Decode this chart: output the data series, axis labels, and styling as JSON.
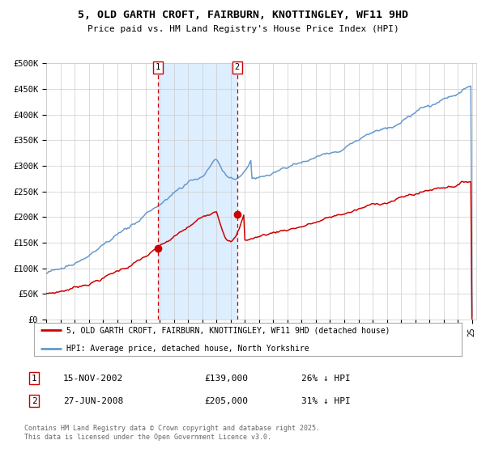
{
  "title": "5, OLD GARTH CROFT, FAIRBURN, KNOTTINGLEY, WF11 9HD",
  "subtitle": "Price paid vs. HM Land Registry's House Price Index (HPI)",
  "ylim": [
    0,
    500000
  ],
  "yticks": [
    0,
    50000,
    100000,
    150000,
    200000,
    250000,
    300000,
    350000,
    400000,
    450000,
    500000
  ],
  "ytick_labels": [
    "£0",
    "£50K",
    "£100K",
    "£150K",
    "£200K",
    "£250K",
    "£300K",
    "£350K",
    "£400K",
    "£450K",
    "£500K"
  ],
  "sale1_price": 139000,
  "sale1_label": "1",
  "sale1_date_str": "15-NOV-2002",
  "sale1_pct": "26% ↓ HPI",
  "sale2_price": 205000,
  "sale2_label": "2",
  "sale2_date_str": "27-JUN-2008",
  "sale2_pct": "31% ↓ HPI",
  "line1_color": "#cc0000",
  "line2_color": "#6699cc",
  "shading_color": "#ddeeff",
  "vline_color": "#cc0000",
  "background_color": "#ffffff",
  "grid_color": "#cccccc",
  "legend1_label": "5, OLD GARTH CROFT, FAIRBURN, KNOTTINGLEY, WF11 9HD (detached house)",
  "legend2_label": "HPI: Average price, detached house, North Yorkshire",
  "footer": "Contains HM Land Registry data © Crown copyright and database right 2025.\nThis data is licensed under the Open Government Licence v3.0.",
  "table_row1": [
    "1",
    "15-NOV-2002",
    "£139,000",
    "26% ↓ HPI"
  ],
  "table_row2": [
    "2",
    "27-JUN-2008",
    "£205,000",
    "31% ↓ HPI"
  ],
  "x_start_year": 1995,
  "x_end_year": 2025
}
